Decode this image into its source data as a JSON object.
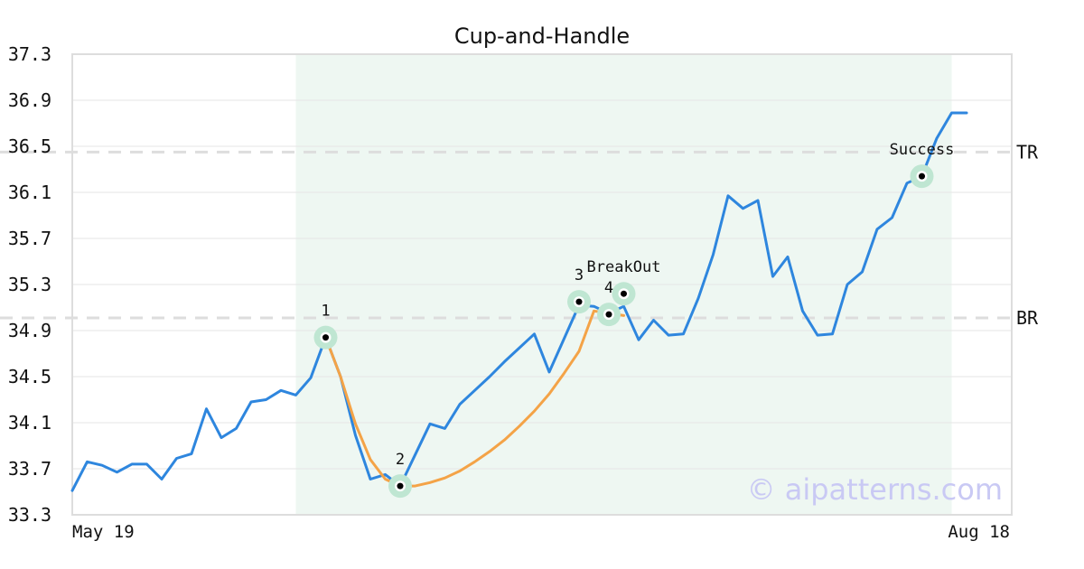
{
  "chart_data": {
    "type": "line",
    "title": "Cup-and-Handle",
    "xlabel": "",
    "ylabel": "",
    "ylim": [
      33.3,
      37.3
    ],
    "yticks": [
      33.3,
      33.7,
      34.1,
      34.5,
      34.9,
      35.3,
      35.7,
      36.1,
      36.5,
      36.9,
      37.3
    ],
    "xtick_labels": [
      "May 19",
      "Aug 18"
    ],
    "grid": true,
    "colors": {
      "price": "#2e86de",
      "pattern": "#f4a347",
      "shade": "#eef7f2",
      "marker_ring": "#bfe6d2",
      "level_line": "#dddddd",
      "watermark": "#c9c9f4"
    },
    "shaded_region": {
      "x_start": 15,
      "x_end": 59
    },
    "series": [
      {
        "values": [
          33.51,
          33.76,
          33.73,
          33.67,
          33.74,
          33.74,
          33.61,
          33.79,
          33.83,
          34.22,
          33.97,
          34.05,
          34.28,
          34.3,
          34.38,
          34.34,
          34.49,
          34.84,
          34.5,
          33.99,
          33.61,
          33.65,
          33.55,
          33.82,
          34.09,
          34.05,
          34.26,
          34.38,
          34.5,
          34.63,
          34.75,
          34.87,
          34.54,
          34.83,
          35.12,
          35.11,
          35.05,
          35.11,
          34.82,
          34.99,
          34.86,
          34.87,
          35.18,
          35.56,
          36.07,
          35.96,
          36.03,
          35.37,
          35.54,
          35.07,
          34.86,
          34.87,
          35.3,
          35.41,
          35.78,
          35.88,
          36.18,
          36.24,
          36.57,
          36.79,
          36.79
        ]
      },
      {
        "values": [
          null,
          null,
          null,
          null,
          null,
          null,
          null,
          null,
          null,
          null,
          null,
          null,
          null,
          null,
          null,
          null,
          null,
          34.84,
          34.5,
          34.09,
          33.78,
          33.61,
          33.55,
          33.55,
          33.58,
          33.62,
          33.68,
          33.76,
          33.85,
          33.95,
          34.07,
          34.2,
          34.35,
          34.53,
          34.72,
          35.07,
          35.05,
          35.03
        ]
      }
    ],
    "levels": [
      {
        "label": "TR",
        "value": 36.45
      },
      {
        "label": "BR",
        "value": 35.01
      }
    ],
    "annotations": [
      {
        "label": "1",
        "x": 17,
        "y": 34.84
      },
      {
        "label": "2",
        "x": 22,
        "y": 33.55
      },
      {
        "label": "3",
        "x": 34,
        "y": 35.15
      },
      {
        "label": "4",
        "x": 36,
        "y": 35.04
      },
      {
        "label": "BreakOut",
        "x": 37,
        "y": 35.22
      },
      {
        "label": "Success",
        "x": 57,
        "y": 36.24
      }
    ]
  },
  "watermark": "© aipatterns.com"
}
